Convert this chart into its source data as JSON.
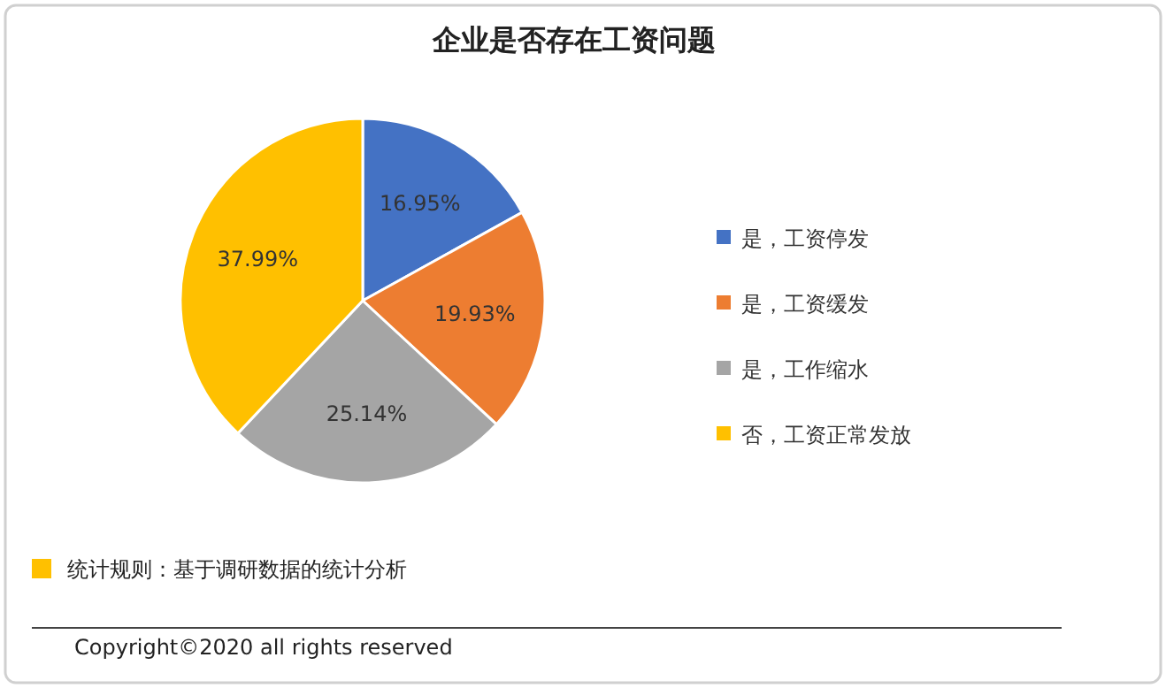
{
  "chart_data": {
    "type": "pie",
    "title": "企业是否存在工资问题",
    "categories": [
      "是，工资停发",
      "是，工资缓发",
      "是，工作缩水",
      "否，工资正常发放"
    ],
    "values": [
      16.95,
      19.93,
      25.14,
      37.99
    ],
    "colors": [
      "#4472c4",
      "#ed7d31",
      "#a5a5a5",
      "#ffc000"
    ],
    "value_labels": [
      "16.95%",
      "19.93%",
      "25.14%",
      "37.99%"
    ],
    "legend": "right",
    "annotations": [
      "统计规则：基于调研数据的统计分析",
      "Copyright©2020 all rights reserved"
    ]
  }
}
